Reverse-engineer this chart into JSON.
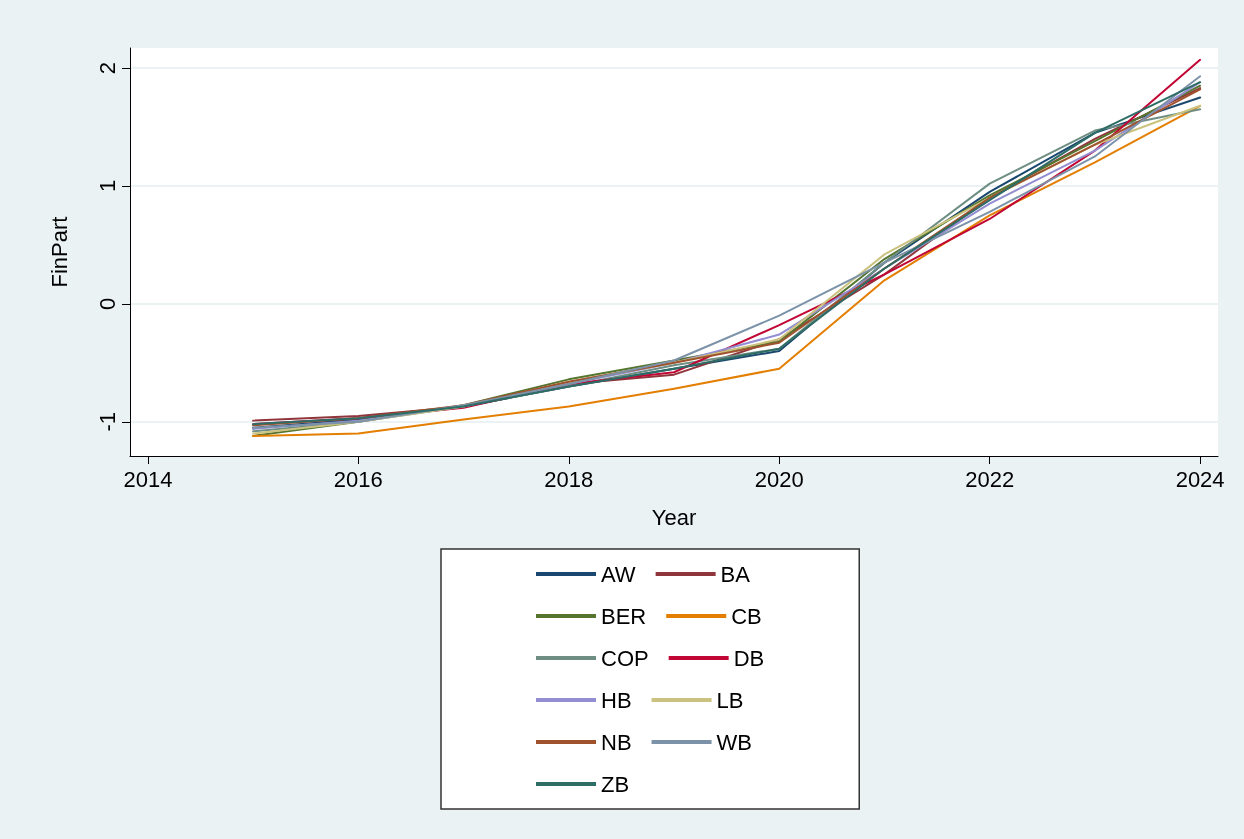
{
  "chart_data": {
    "type": "line",
    "xlabel": "Year",
    "ylabel": "FinPart",
    "x": [
      2015,
      2016,
      2017,
      2018,
      2019,
      2020,
      2021,
      2022,
      2023,
      2024
    ],
    "xlim": [
      2013.83,
      2024.17
    ],
    "xticks": [
      2014,
      2016,
      2018,
      2020,
      2022,
      2024
    ],
    "ylim": [
      -1.29,
      2.17
    ],
    "yticks": [
      -1,
      0,
      1,
      2
    ],
    "grid": "y",
    "legend": "bottom",
    "marker": "none",
    "line_style": "solid",
    "series": [
      {
        "name": "AW",
        "color": "#1a476f",
        "values": [
          -1.05,
          -0.98,
          -0.87,
          -0.7,
          -0.55,
          -0.4,
          0.35,
          0.95,
          1.45,
          1.75
        ]
      },
      {
        "name": "BA",
        "color": "#90353b",
        "values": [
          -0.99,
          -0.95,
          -0.87,
          -0.68,
          -0.6,
          -0.3,
          0.25,
          0.9,
          1.4,
          1.83
        ]
      },
      {
        "name": "BER",
        "color": "#55752f",
        "values": [
          -1.12,
          -1.0,
          -0.86,
          -0.64,
          -0.48,
          -0.32,
          0.38,
          0.92,
          1.38,
          1.85
        ]
      },
      {
        "name": "CB",
        "color": "#e37e00",
        "values": [
          -1.12,
          -1.1,
          -0.98,
          -0.87,
          -0.72,
          -0.55,
          0.2,
          0.75,
          1.2,
          1.68
        ]
      },
      {
        "name": "COP",
        "color": "#6e8e84",
        "values": [
          -1.08,
          -1.0,
          -0.87,
          -0.7,
          -0.52,
          -0.38,
          0.35,
          1.02,
          1.47,
          1.65
        ]
      },
      {
        "name": "DB",
        "color": "#c10534",
        "values": [
          -1.02,
          -0.97,
          -0.88,
          -0.68,
          -0.58,
          -0.18,
          0.25,
          0.72,
          1.3,
          2.07
        ]
      },
      {
        "name": "HB",
        "color": "#938dd2",
        "values": [
          -1.06,
          -0.99,
          -0.87,
          -0.68,
          -0.5,
          -0.26,
          0.3,
          0.85,
          1.3,
          1.88
        ]
      },
      {
        "name": "LB",
        "color": "#cac27e",
        "values": [
          -1.1,
          -1.0,
          -0.87,
          -0.66,
          -0.5,
          -0.3,
          0.42,
          0.9,
          1.35,
          1.68
        ]
      },
      {
        "name": "NB",
        "color": "#a0522d",
        "values": [
          -1.03,
          -0.97,
          -0.86,
          -0.66,
          -0.5,
          -0.33,
          0.3,
          0.9,
          1.35,
          1.82
        ]
      },
      {
        "name": "WB",
        "color": "#7b92a8",
        "values": [
          -1.05,
          -1.0,
          -0.86,
          -0.68,
          -0.48,
          -0.1,
          0.35,
          0.78,
          1.25,
          1.93
        ]
      },
      {
        "name": "ZB",
        "color": "#2d6d66",
        "values": [
          -1.02,
          -0.97,
          -0.87,
          -0.7,
          -0.55,
          -0.38,
          0.3,
          0.88,
          1.45,
          1.88
        ]
      }
    ]
  }
}
